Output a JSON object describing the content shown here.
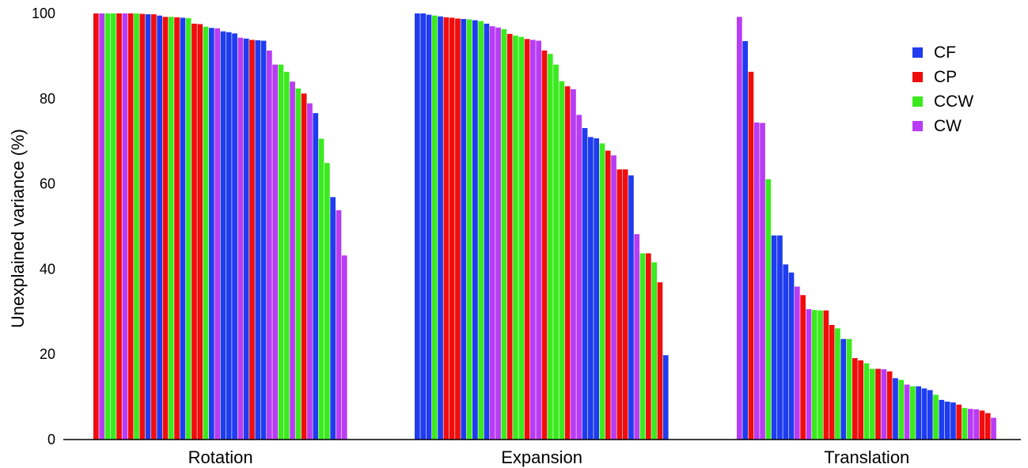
{
  "colors": {
    "CF": "#1f3cf0",
    "CP": "#f00d0d",
    "CCW": "#3bea1e",
    "CW": "#b83cf5"
  },
  "chart_data": {
    "type": "bar",
    "title": "",
    "ylabel": "Unexplained variance (%)",
    "ylim": [
      0,
      100
    ],
    "yticks": [
      "0",
      "20",
      "40",
      "60",
      "80",
      "100"
    ],
    "grid": false,
    "legend": {
      "position": "top-right",
      "entries": [
        "CF",
        "CP",
        "CCW",
        "CW"
      ]
    },
    "groups": [
      {
        "name": "Rotation",
        "bars": [
          {
            "s": "CP",
            "v": 100
          },
          {
            "s": "CW",
            "v": 100
          },
          {
            "s": "CCW",
            "v": 100
          },
          {
            "s": "CCW",
            "v": 100
          },
          {
            "s": "CP",
            "v": 100
          },
          {
            "s": "CW",
            "v": 100
          },
          {
            "s": "CP",
            "v": 100
          },
          {
            "s": "CCW",
            "v": 100
          },
          {
            "s": "CP",
            "v": 99.9
          },
          {
            "s": "CF",
            "v": 99.8
          },
          {
            "s": "CP",
            "v": 99.8
          },
          {
            "s": "CF",
            "v": 99.5
          },
          {
            "s": "CP",
            "v": 99.2
          },
          {
            "s": "CCW",
            "v": 99.2
          },
          {
            "s": "CP",
            "v": 99.1
          },
          {
            "s": "CF",
            "v": 99.0
          },
          {
            "s": "CCW",
            "v": 98.9
          },
          {
            "s": "CP",
            "v": 97.6
          },
          {
            "s": "CP",
            "v": 97.5
          },
          {
            "s": "CCW",
            "v": 96.9
          },
          {
            "s": "CF",
            "v": 96.6
          },
          {
            "s": "CW",
            "v": 96.5
          },
          {
            "s": "CF",
            "v": 95.8
          },
          {
            "s": "CF",
            "v": 95.6
          },
          {
            "s": "CF",
            "v": 95.3
          },
          {
            "s": "CW",
            "v": 94.3
          },
          {
            "s": "CF",
            "v": 94.1
          },
          {
            "s": "CP",
            "v": 93.8
          },
          {
            "s": "CF",
            "v": 93.7
          },
          {
            "s": "CF",
            "v": 93.6
          },
          {
            "s": "CW",
            "v": 91.3
          },
          {
            "s": "CW",
            "v": 88.0
          },
          {
            "s": "CCW",
            "v": 88.0
          },
          {
            "s": "CCW",
            "v": 86.3
          },
          {
            "s": "CW",
            "v": 84.0
          },
          {
            "s": "CCW",
            "v": 82.4
          },
          {
            "s": "CP",
            "v": 81.2
          },
          {
            "s": "CW",
            "v": 78.9
          },
          {
            "s": "CF",
            "v": 76.6
          },
          {
            "s": "CCW",
            "v": 70.6
          },
          {
            "s": "CCW",
            "v": 64.9
          },
          {
            "s": "CF",
            "v": 56.9
          },
          {
            "s": "CW",
            "v": 53.8
          },
          {
            "s": "CW",
            "v": 43.2
          }
        ]
      },
      {
        "name": "Expansion",
        "bars": [
          {
            "s": "CF",
            "v": 100
          },
          {
            "s": "CF",
            "v": 100
          },
          {
            "s": "CF",
            "v": 99.7
          },
          {
            "s": "CCW",
            "v": 99.5
          },
          {
            "s": "CF",
            "v": 99.3
          },
          {
            "s": "CP",
            "v": 99.1
          },
          {
            "s": "CP",
            "v": 99.0
          },
          {
            "s": "CP",
            "v": 98.8
          },
          {
            "s": "CF",
            "v": 98.7
          },
          {
            "s": "CCW",
            "v": 98.6
          },
          {
            "s": "CF",
            "v": 98.4
          },
          {
            "s": "CCW",
            "v": 98.2
          },
          {
            "s": "CF",
            "v": 97.6
          },
          {
            "s": "CW",
            "v": 97.0
          },
          {
            "s": "CW",
            "v": 96.7
          },
          {
            "s": "CCW",
            "v": 96.3
          },
          {
            "s": "CP",
            "v": 95.2
          },
          {
            "s": "CCW",
            "v": 94.8
          },
          {
            "s": "CCW",
            "v": 94.5
          },
          {
            "s": "CP",
            "v": 94.0
          },
          {
            "s": "CW",
            "v": 93.8
          },
          {
            "s": "CW",
            "v": 93.6
          },
          {
            "s": "CP",
            "v": 91.3
          },
          {
            "s": "CCW",
            "v": 90.5
          },
          {
            "s": "CCW",
            "v": 88.0
          },
          {
            "s": "CCW",
            "v": 84.1
          },
          {
            "s": "CP",
            "v": 82.9
          },
          {
            "s": "CW",
            "v": 82.2
          },
          {
            "s": "CW",
            "v": 76.2
          },
          {
            "s": "CF",
            "v": 73.1
          },
          {
            "s": "CF",
            "v": 71.0
          },
          {
            "s": "CF",
            "v": 70.7
          },
          {
            "s": "CCW",
            "v": 69.5
          },
          {
            "s": "CP",
            "v": 67.8
          },
          {
            "s": "CW",
            "v": 66.7
          },
          {
            "s": "CP",
            "v": 63.4
          },
          {
            "s": "CP",
            "v": 63.4
          },
          {
            "s": "CF",
            "v": 62.0
          },
          {
            "s": "CW",
            "v": 48.2
          },
          {
            "s": "CCW",
            "v": 43.7
          },
          {
            "s": "CP",
            "v": 43.7
          },
          {
            "s": "CCW",
            "v": 41.6
          },
          {
            "s": "CP",
            "v": 36.9
          },
          {
            "s": "CF",
            "v": 19.8
          }
        ]
      },
      {
        "name": "Translation",
        "bars": [
          {
            "s": "CW",
            "v": 99.2
          },
          {
            "s": "CF",
            "v": 93.5
          },
          {
            "s": "CP",
            "v": 86.3
          },
          {
            "s": "CW",
            "v": 74.4
          },
          {
            "s": "CW",
            "v": 74.3
          },
          {
            "s": "CCW",
            "v": 61.1
          },
          {
            "s": "CF",
            "v": 47.9
          },
          {
            "s": "CF",
            "v": 47.9
          },
          {
            "s": "CF",
            "v": 41.1
          },
          {
            "s": "CF",
            "v": 39.2
          },
          {
            "s": "CW",
            "v": 35.9
          },
          {
            "s": "CP",
            "v": 33.9
          },
          {
            "s": "CW",
            "v": 30.6
          },
          {
            "s": "CCW",
            "v": 30.4
          },
          {
            "s": "CCW",
            "v": 30.3
          },
          {
            "s": "CP",
            "v": 30.3
          },
          {
            "s": "CP",
            "v": 26.9
          },
          {
            "s": "CCW",
            "v": 26.1
          },
          {
            "s": "CF",
            "v": 23.6
          },
          {
            "s": "CCW",
            "v": 23.6
          },
          {
            "s": "CP",
            "v": 19.1
          },
          {
            "s": "CP",
            "v": 18.6
          },
          {
            "s": "CCW",
            "v": 17.9
          },
          {
            "s": "CCW",
            "v": 16.6
          },
          {
            "s": "CP",
            "v": 16.6
          },
          {
            "s": "CW",
            "v": 16.5
          },
          {
            "s": "CP",
            "v": 16.0
          },
          {
            "s": "CF",
            "v": 14.4
          },
          {
            "s": "CCW",
            "v": 14.0
          },
          {
            "s": "CW",
            "v": 12.9
          },
          {
            "s": "CCW",
            "v": 12.5
          },
          {
            "s": "CF",
            "v": 12.5
          },
          {
            "s": "CF",
            "v": 12.0
          },
          {
            "s": "CF",
            "v": 11.6
          },
          {
            "s": "CCW",
            "v": 10.5
          },
          {
            "s": "CF",
            "v": 9.3
          },
          {
            "s": "CF",
            "v": 8.9
          },
          {
            "s": "CF",
            "v": 8.7
          },
          {
            "s": "CP",
            "v": 8.2
          },
          {
            "s": "CCW",
            "v": 7.4
          },
          {
            "s": "CW",
            "v": 7.2
          },
          {
            "s": "CW",
            "v": 7.1
          },
          {
            "s": "CP",
            "v": 6.8
          },
          {
            "s": "CP",
            "v": 6.2
          },
          {
            "s": "CW",
            "v": 5.1
          }
        ]
      }
    ]
  }
}
